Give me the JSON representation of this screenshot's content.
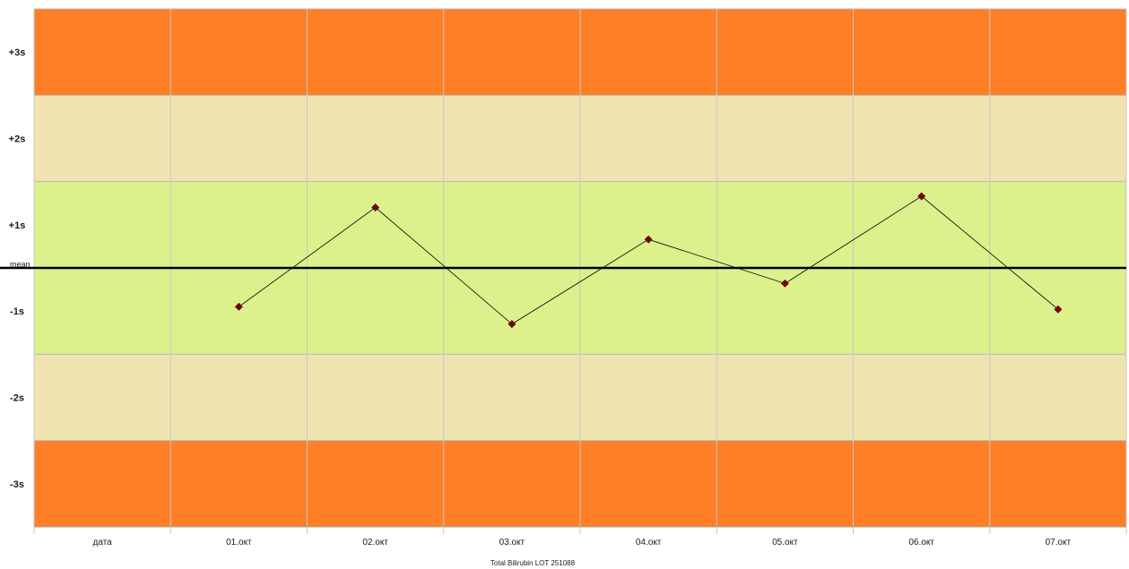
{
  "chart_data": {
    "type": "line",
    "title": "Total Bilirubin LOT 251088",
    "categories": [
      "дата",
      "01.окт",
      "02.окт",
      "03.окт",
      "04.окт",
      "05.окт",
      "06.окт",
      "07.окт"
    ],
    "series": [
      {
        "x": [
          "01.окт",
          "02.окт",
          "03.окт",
          "04.окт",
          "05.окт",
          "06.окт",
          "07.окт"
        ],
        "values": [
          -0.45,
          0.7,
          -0.65,
          0.33,
          -0.18,
          0.83,
          -0.48
        ],
        "color": "#7b0000"
      }
    ],
    "ylim": [
      -3,
      3
    ],
    "mean_label": "mean",
    "bands": [
      {
        "label": "+3s",
        "from": 2,
        "to": 3,
        "color": "#ff7f27"
      },
      {
        "label": "+2s",
        "from": 1,
        "to": 2,
        "color": "#efe4b0"
      },
      {
        "label": "+1s",
        "from": 0,
        "to": 1,
        "color": "#dcf08c"
      },
      {
        "label": "-1s",
        "from": -1,
        "to": 0,
        "color": "#dcf08c"
      },
      {
        "label": "-2s",
        "from": -2,
        "to": -1,
        "color": "#efe4b0"
      },
      {
        "label": "-3s",
        "from": -3,
        "to": -2,
        "color": "#ff7f27"
      }
    ],
    "grid": true,
    "legend": "none"
  }
}
